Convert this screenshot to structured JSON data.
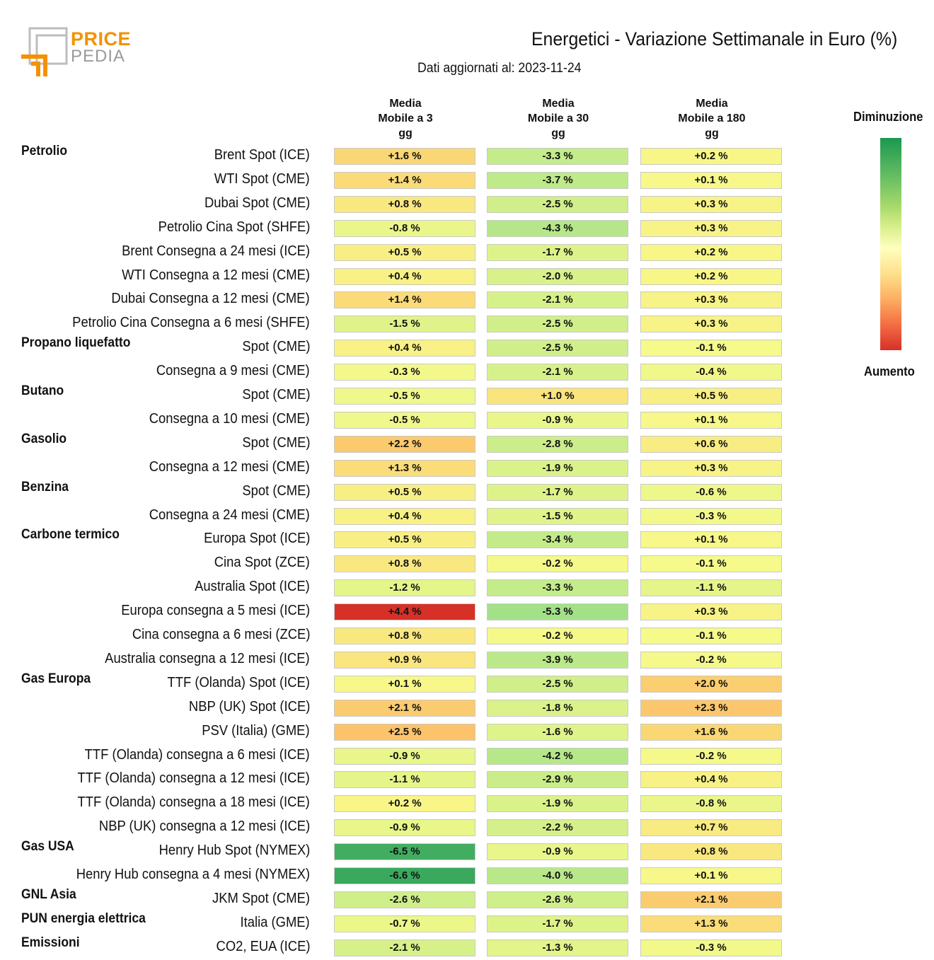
{
  "logo": {
    "line1": "PRICE",
    "line2": "PEDIA"
  },
  "title": "Energetici - Variazione Settimanale in Euro (%)",
  "subtitle": "Dati aggiornati al: 2023-11-24",
  "legend": {
    "top": "Diminuzione",
    "bottom": "Aumento"
  },
  "colors": {
    "decrease": "#1a9850",
    "neutral": "#ffffbf",
    "increase": "#d73027"
  },
  "chart_data": {
    "type": "table",
    "title": "Energetici - Variazione Settimanale in Euro (%)",
    "columns": [
      {
        "l1": "Media",
        "l2": "Mobile a 3",
        "l3": "gg"
      },
      {
        "l1": "Media",
        "l2": "Mobile a 30",
        "l3": "gg"
      },
      {
        "l1": "Media",
        "l2": "Mobile a 180",
        "l3": "gg"
      }
    ],
    "rows": [
      {
        "group": "Petrolio",
        "label": "Brent Spot (ICE)",
        "values": [
          1.6,
          -3.3,
          0.2
        ]
      },
      {
        "group": "",
        "label": "WTI Spot (CME)",
        "values": [
          1.4,
          -3.7,
          0.1
        ]
      },
      {
        "group": "",
        "label": "Dubai Spot (CME)",
        "values": [
          0.8,
          -2.5,
          0.3
        ]
      },
      {
        "group": "",
        "label": "Petrolio Cina Spot (SHFE)",
        "values": [
          -0.8,
          -4.3,
          0.3
        ]
      },
      {
        "group": "",
        "label": "Brent Consegna a 24 mesi (ICE)",
        "values": [
          0.5,
          -1.7,
          0.2
        ]
      },
      {
        "group": "",
        "label": "WTI Consegna a 12 mesi (CME)",
        "values": [
          0.4,
          -2.0,
          0.2
        ]
      },
      {
        "group": "",
        "label": "Dubai Consegna a 12 mesi (CME)",
        "values": [
          1.4,
          -2.1,
          0.3
        ]
      },
      {
        "group": "",
        "label": "Petrolio Cina Consegna a 6 mesi (SHFE)",
        "values": [
          -1.5,
          -2.5,
          0.3
        ]
      },
      {
        "group": "Propano liquefatto",
        "label": "Spot (CME)",
        "values": [
          0.4,
          -2.5,
          -0.1
        ]
      },
      {
        "group": "",
        "label": "Consegna a 9 mesi (CME)",
        "values": [
          -0.3,
          -2.1,
          -0.4
        ]
      },
      {
        "group": "Butano",
        "label": "Spot (CME)",
        "values": [
          -0.5,
          1.0,
          0.5
        ]
      },
      {
        "group": "",
        "label": "Consegna a 10 mesi (CME)",
        "values": [
          -0.5,
          -0.9,
          0.1
        ]
      },
      {
        "group": "Gasolio",
        "label": "Spot (CME)",
        "values": [
          2.2,
          -2.8,
          0.6
        ]
      },
      {
        "group": "",
        "label": "Consegna a 12 mesi (CME)",
        "values": [
          1.3,
          -1.9,
          0.3
        ]
      },
      {
        "group": "Benzina",
        "label": "Spot (CME)",
        "values": [
          0.5,
          -1.7,
          -0.6
        ]
      },
      {
        "group": "",
        "label": "Consegna a 24 mesi (CME)",
        "values": [
          0.4,
          -1.5,
          -0.3
        ]
      },
      {
        "group": "Carbone termico",
        "label": "Europa Spot (ICE)",
        "values": [
          0.5,
          -3.4,
          0.1
        ]
      },
      {
        "group": "",
        "label": "Cina Spot (ZCE)",
        "values": [
          0.8,
          -0.2,
          -0.1
        ]
      },
      {
        "group": "",
        "label": "Australia Spot (ICE)",
        "values": [
          -1.2,
          -3.3,
          -1.1
        ]
      },
      {
        "group": "",
        "label": "Europa consegna a 5 mesi (ICE)",
        "values": [
          4.4,
          -5.3,
          0.3
        ]
      },
      {
        "group": "",
        "label": "Cina consegna a 6 mesi (ZCE)",
        "values": [
          0.8,
          -0.2,
          -0.1
        ]
      },
      {
        "group": "",
        "label": "Australia consegna a 12 mesi (ICE)",
        "values": [
          0.9,
          -3.9,
          -0.2
        ]
      },
      {
        "group": "Gas Europa",
        "label": "TTF (Olanda) Spot (ICE)",
        "values": [
          0.1,
          -2.5,
          2.0
        ]
      },
      {
        "group": "",
        "label": "NBP (UK) Spot (ICE)",
        "values": [
          2.1,
          -1.8,
          2.3
        ]
      },
      {
        "group": "",
        "label": "PSV (Italia) (GME)",
        "values": [
          2.5,
          -1.6,
          1.6
        ]
      },
      {
        "group": "",
        "label": "TTF (Olanda) consegna a 6 mesi (ICE)",
        "values": [
          -0.9,
          -4.2,
          -0.2
        ]
      },
      {
        "group": "",
        "label": "TTF (Olanda) consegna a 12 mesi (ICE)",
        "values": [
          -1.1,
          -2.9,
          0.4
        ]
      },
      {
        "group": "",
        "label": "TTF (Olanda) consegna a 18 mesi (ICE)",
        "values": [
          0.2,
          -1.9,
          -0.8
        ]
      },
      {
        "group": "",
        "label": "NBP (UK) consegna a 12 mesi (ICE)",
        "values": [
          -0.9,
          -2.2,
          0.7
        ]
      },
      {
        "group": "Gas USA",
        "label": "Henry Hub Spot (NYMEX)",
        "values": [
          -6.5,
          -0.9,
          0.8
        ]
      },
      {
        "group": "",
        "label": "Henry Hub consegna a 4 mesi (NYMEX)",
        "values": [
          -6.6,
          -4.0,
          0.1
        ]
      },
      {
        "group": "GNL Asia",
        "label": "JKM Spot (CME)",
        "values": [
          -2.6,
          -2.6,
          2.1
        ]
      },
      {
        "group": "PUN energia elettrica",
        "label": "Italia (GME)",
        "values": [
          -0.7,
          -1.7,
          1.3
        ]
      },
      {
        "group": "Emissioni",
        "label": "CO2, EUA (ICE)",
        "values": [
          -2.1,
          -1.3,
          -0.3
        ]
      }
    ]
  }
}
